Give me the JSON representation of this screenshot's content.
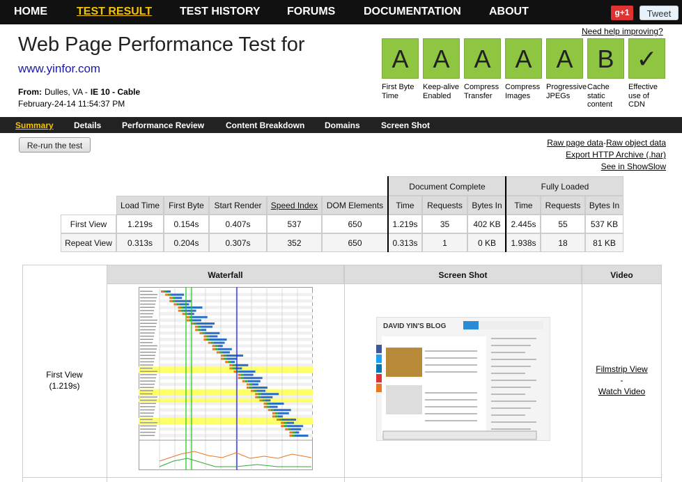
{
  "nav": {
    "items": [
      "HOME",
      "TEST RESULT",
      "TEST HISTORY",
      "FORUMS",
      "DOCUMENTATION",
      "ABOUT"
    ],
    "active": 1,
    "gplus": "g+1",
    "tweet": "Tweet"
  },
  "help": "Need help improving?",
  "header": {
    "title": "Web Page Performance Test for",
    "url": "www.yinfor.com",
    "from_label": "From:",
    "from": "Dulles, VA -",
    "browser": "IE 10 - Cable",
    "date": "February-24-14 11:54:37 PM"
  },
  "grades": [
    {
      "grade": "A",
      "label": "First Byte Time"
    },
    {
      "grade": "A",
      "label": "Keep-alive Enabled"
    },
    {
      "grade": "A",
      "label": "Compress Transfer"
    },
    {
      "grade": "A",
      "label": "Compress Images"
    },
    {
      "grade": "A",
      "label": "Progressive JPEGs"
    },
    {
      "grade": "B",
      "label": "Cache static content"
    },
    {
      "grade": "✓",
      "label": "Effective use of CDN"
    }
  ],
  "tabs": {
    "items": [
      "Summary",
      "Details",
      "Performance Review",
      "Content Breakdown",
      "Domains",
      "Screen Shot"
    ],
    "active": 0
  },
  "rerun": "Re-run the test",
  "links": {
    "raw_page": "Raw page data",
    "sep": "-",
    "raw_object": "Raw object data",
    "har": "Export HTTP Archive (.har)",
    "showslow": "See in ShowSlow"
  },
  "summary_table": {
    "groups": [
      "Document Complete",
      "Fully Loaded"
    ],
    "headers": [
      "Load Time",
      "First Byte",
      "Start Render",
      "Speed Index",
      "DOM Elements",
      "Time",
      "Requests",
      "Bytes In",
      "Time",
      "Requests",
      "Bytes In"
    ],
    "rows": [
      [
        "First View",
        "1.219s",
        "0.154s",
        "0.407s",
        "537",
        "650",
        "1.219s",
        "35",
        "402 KB",
        "2.445s",
        "55",
        "537 KB"
      ],
      [
        "Repeat View",
        "0.313s",
        "0.204s",
        "0.307s",
        "352",
        "650",
        "0.313s",
        "1",
        "0 KB",
        "1.938s",
        "18",
        "81 KB"
      ]
    ]
  },
  "results": {
    "headers": [
      "Waterfall",
      "Screen Shot",
      "Video"
    ],
    "row_label": "First View",
    "row_time": "(1.219s)",
    "filmstrip": "Filmstrip View",
    "sep": "-",
    "video": "Watch Video",
    "blog_title": "DAVID YIN'S BLOG"
  }
}
